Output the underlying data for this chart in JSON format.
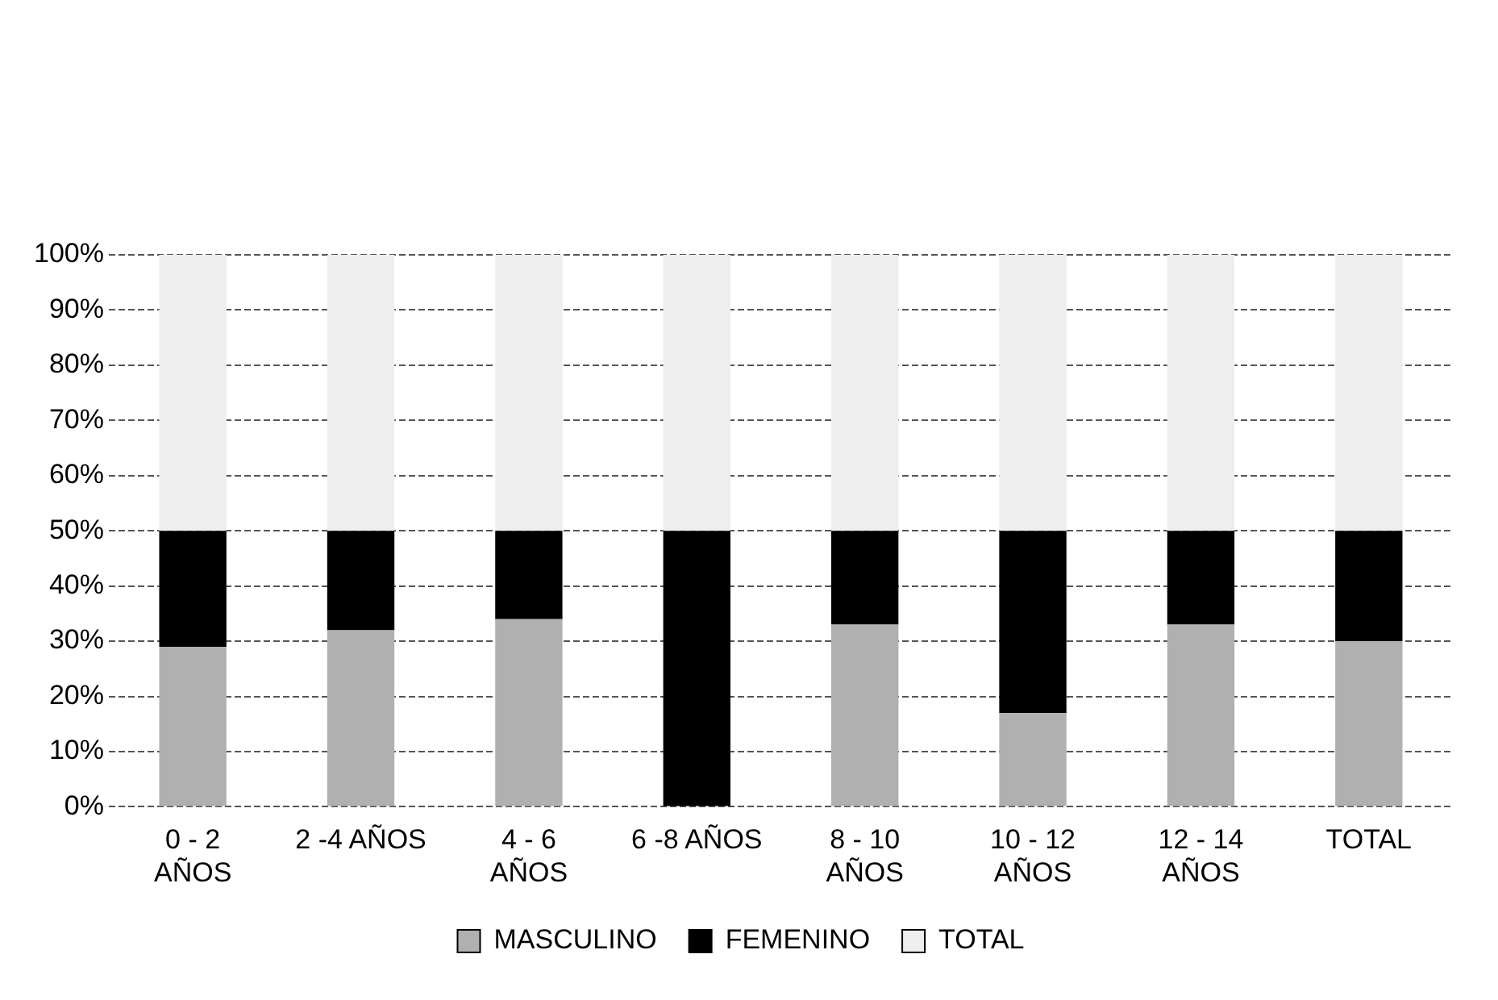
{
  "chart_data": {
    "type": "bar",
    "stacked": true,
    "categories": [
      "0 - 2 AÑOS",
      "2 -4 AÑOS",
      "4 - 6 AÑOS",
      "6 -8 AÑOS",
      "8 - 10 AÑOS",
      "10 - 12 AÑOS",
      "12 - 14 AÑOS",
      "TOTAL"
    ],
    "series": [
      {
        "name": "MASCULINO",
        "color": "#b0b0b0",
        "values": [
          29,
          32,
          34,
          0,
          33,
          17,
          33,
          30
        ]
      },
      {
        "name": "FEMENINO",
        "color": "#000000",
        "values": [
          21,
          18,
          16,
          50,
          17,
          33,
          17,
          20
        ]
      },
      {
        "name": "TOTAL",
        "color": "#eeeeee",
        "values": [
          50,
          50,
          50,
          50,
          50,
          50,
          50,
          50
        ]
      }
    ],
    "ylim": [
      0,
      100
    ],
    "yticks": [
      {
        "value": 0,
        "label": "0%"
      },
      {
        "value": 10,
        "label": "10%"
      },
      {
        "value": 20,
        "label": "20%"
      },
      {
        "value": 30,
        "label": "30%"
      },
      {
        "value": 40,
        "label": "40%"
      },
      {
        "value": 50,
        "label": "50%"
      },
      {
        "value": 60,
        "label": "60%"
      },
      {
        "value": 70,
        "label": "70%"
      },
      {
        "value": 80,
        "label": "80%"
      },
      {
        "value": 90,
        "label": "90%"
      },
      {
        "value": 100,
        "label": "100%"
      }
    ],
    "grid": "y",
    "legend": "bottom"
  }
}
